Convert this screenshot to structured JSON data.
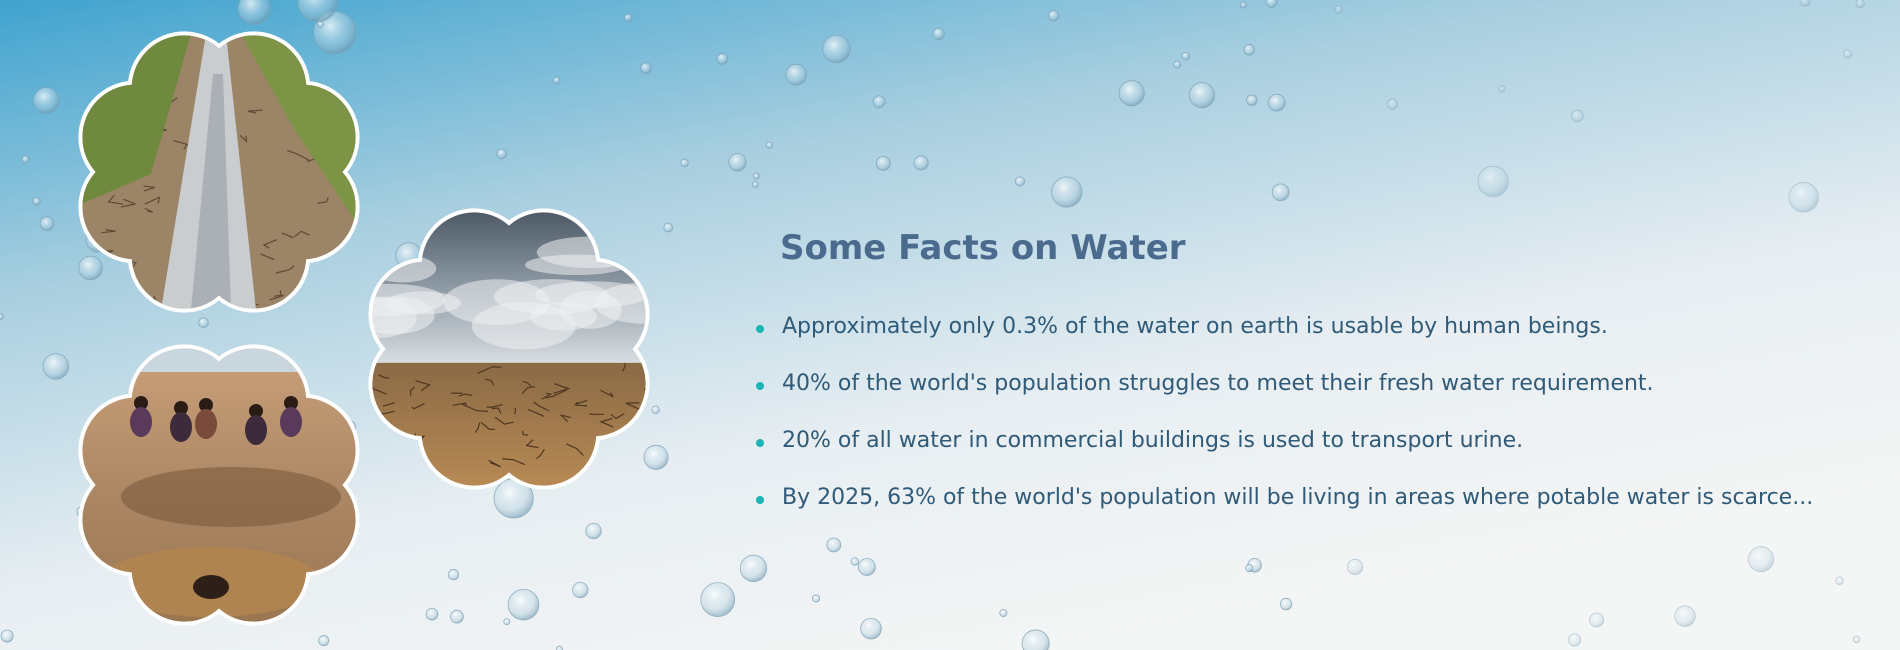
{
  "title": "Some Facts on Water",
  "facts": [
    "Approximately only 0.3% of the water on earth is usable by human beings.",
    "40% of the world's population struggles to meet their fresh water requirement.",
    "20% of all water in commercial buildings is used to transport urine.",
    "By 2025, 63% of the world's population will be living in areas where potable water is scarce..."
  ]
}
